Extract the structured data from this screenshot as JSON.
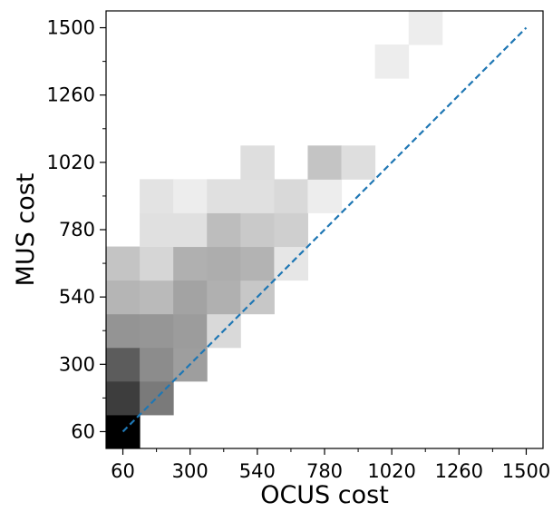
{
  "chart_data": {
    "type": "heatmap",
    "title": "",
    "xlabel": "OCUS cost",
    "ylabel": "MUS cost",
    "xlim": [
      0,
      1560
    ],
    "ylim": [
      0,
      1560
    ],
    "xticks": [
      60,
      300,
      540,
      780,
      1020,
      1260,
      1500
    ],
    "yticks": [
      60,
      300,
      540,
      780,
      1020,
      1260,
      1500
    ],
    "bin_width": 120,
    "colormap": "greys",
    "grid": false,
    "reference_line": {
      "from": [
        60,
        60
      ],
      "to": [
        1500,
        1500
      ],
      "color": "#1f77b4",
      "style": "dashed"
    },
    "cells": [
      {
        "x": 60,
        "y": 60,
        "shade": 1.0
      },
      {
        "x": 60,
        "y": 180,
        "shade": 0.76
      },
      {
        "x": 180,
        "y": 180,
        "shade": 0.52
      },
      {
        "x": 60,
        "y": 300,
        "shade": 0.64
      },
      {
        "x": 180,
        "y": 300,
        "shade": 0.45
      },
      {
        "x": 300,
        "y": 300,
        "shade": 0.38
      },
      {
        "x": 60,
        "y": 420,
        "shade": 0.42
      },
      {
        "x": 180,
        "y": 420,
        "shade": 0.41
      },
      {
        "x": 300,
        "y": 420,
        "shade": 0.39
      },
      {
        "x": 420,
        "y": 420,
        "shade": 0.15
      },
      {
        "x": 60,
        "y": 540,
        "shade": 0.29
      },
      {
        "x": 180,
        "y": 540,
        "shade": 0.27
      },
      {
        "x": 300,
        "y": 540,
        "shade": 0.36
      },
      {
        "x": 420,
        "y": 540,
        "shade": 0.31
      },
      {
        "x": 540,
        "y": 540,
        "shade": 0.22
      },
      {
        "x": 60,
        "y": 660,
        "shade": 0.23
      },
      {
        "x": 180,
        "y": 660,
        "shade": 0.16
      },
      {
        "x": 300,
        "y": 660,
        "shade": 0.31
      },
      {
        "x": 420,
        "y": 660,
        "shade": 0.32
      },
      {
        "x": 540,
        "y": 660,
        "shade": 0.3
      },
      {
        "x": 660,
        "y": 660,
        "shade": 0.1
      },
      {
        "x": 180,
        "y": 780,
        "shade": 0.12
      },
      {
        "x": 300,
        "y": 780,
        "shade": 0.12
      },
      {
        "x": 420,
        "y": 780,
        "shade": 0.26
      },
      {
        "x": 540,
        "y": 780,
        "shade": 0.21
      },
      {
        "x": 660,
        "y": 780,
        "shade": 0.19
      },
      {
        "x": 180,
        "y": 900,
        "shade": 0.11
      },
      {
        "x": 300,
        "y": 900,
        "shade": 0.07
      },
      {
        "x": 420,
        "y": 900,
        "shade": 0.12
      },
      {
        "x": 540,
        "y": 900,
        "shade": 0.12
      },
      {
        "x": 660,
        "y": 900,
        "shade": 0.15
      },
      {
        "x": 780,
        "y": 900,
        "shade": 0.07
      },
      {
        "x": 540,
        "y": 1020,
        "shade": 0.13
      },
      {
        "x": 780,
        "y": 1020,
        "shade": 0.23
      },
      {
        "x": 900,
        "y": 1020,
        "shade": 0.13
      },
      {
        "x": 1020,
        "y": 1380,
        "shade": 0.07
      },
      {
        "x": 1140,
        "y": 1500,
        "shade": 0.07
      }
    ]
  }
}
